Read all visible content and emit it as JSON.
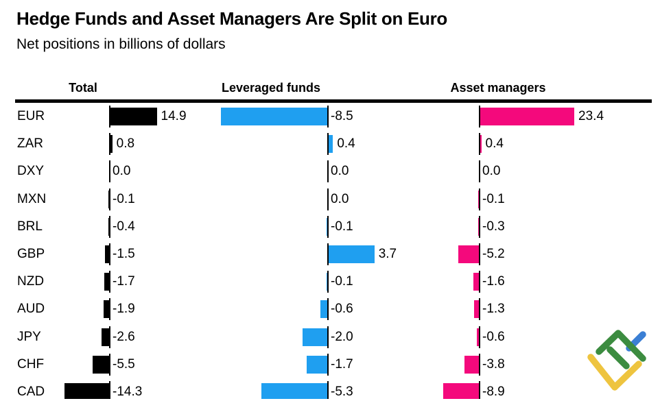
{
  "title": "Hedge Funds and Asset Managers Are Split on Euro",
  "subtitle": "Net positions in billions of dollars",
  "column_headers": [
    "Total",
    "Leveraged funds",
    "Asset managers"
  ],
  "logo": {
    "name": "litefinance-logo",
    "colors": {
      "green": "#3c8c40",
      "yellow": "#eec43f",
      "blue": "#3b7fd4"
    }
  },
  "chart_data": {
    "type": "bar",
    "orientation": "horizontal",
    "title": "Hedge Funds and Asset Managers Are Split on Euro",
    "subtitle": "Net positions in billions of dollars",
    "categories": [
      "EUR",
      "ZAR",
      "DXY",
      "MXN",
      "BRL",
      "GBP",
      "NZD",
      "AUD",
      "JPY",
      "CHF",
      "CAD"
    ],
    "series": [
      {
        "name": "Total",
        "color": "#000000",
        "values": [
          14.9,
          0.8,
          0.0,
          -0.1,
          -0.4,
          -1.5,
          -1.7,
          -1.9,
          -2.6,
          -5.5,
          -14.3
        ]
      },
      {
        "name": "Leveraged funds",
        "color": "#1f9ff0",
        "values": [
          -8.5,
          0.4,
          0.0,
          0.0,
          -0.1,
          3.7,
          -0.1,
          -0.6,
          -2.0,
          -1.7,
          -5.3
        ]
      },
      {
        "name": "Asset managers",
        "color": "#f4097c",
        "values": [
          23.4,
          0.4,
          0.0,
          -0.1,
          -0.3,
          -5.2,
          -1.6,
          -1.3,
          -0.6,
          -3.8,
          -8.9
        ]
      }
    ],
    "value_labels": true,
    "grid": false,
    "legend_position": "column-headers-top",
    "unit": "billions of dollars"
  }
}
